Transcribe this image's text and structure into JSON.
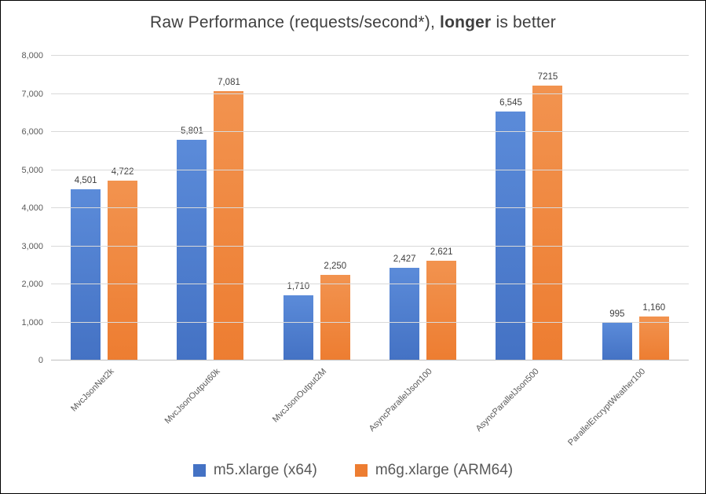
{
  "title": {
    "prefix": "Raw Performance (requests/second*), ",
    "bold": "longer",
    "suffix": " is better"
  },
  "chart_data": {
    "type": "bar",
    "title": "Raw Performance (requests/second*), longer is better",
    "categories": [
      "MvcJsonNet2k",
      "MvcJsonOutput60k",
      "MvcJsonOutput2M",
      "AsyncParallelJson100",
      "AsyncParallelJson500",
      "ParallelEncryptWeather100"
    ],
    "series": [
      {
        "name": "m5.xlarge (x64)",
        "color": "#4472C4",
        "color_light": "#5b8bd9",
        "values": [
          4501,
          5801,
          1710,
          2427,
          6545,
          995
        ],
        "labels": [
          "4,501",
          "5,801",
          "1,710",
          "2,427",
          "6,545",
          "995"
        ]
      },
      {
        "name": "m6g.xlarge (ARM64)",
        "color": "#ED7D31",
        "color_light": "#f2934f",
        "values": [
          4722,
          7081,
          2250,
          2621,
          7215,
          1160
        ],
        "labels": [
          "4,722",
          "7,081",
          "2,250",
          "2,621",
          "7215",
          "1,160"
        ]
      }
    ],
    "xlabel": "",
    "ylabel": "",
    "ylim": [
      0,
      8000
    ],
    "ytick_interval": 1000,
    "ytick_labels": [
      "0",
      "1,000",
      "2,000",
      "3,000",
      "4,000",
      "5,000",
      "6,000",
      "7,000",
      "8,000"
    ],
    "grid": true,
    "legend_position": "bottom"
  }
}
